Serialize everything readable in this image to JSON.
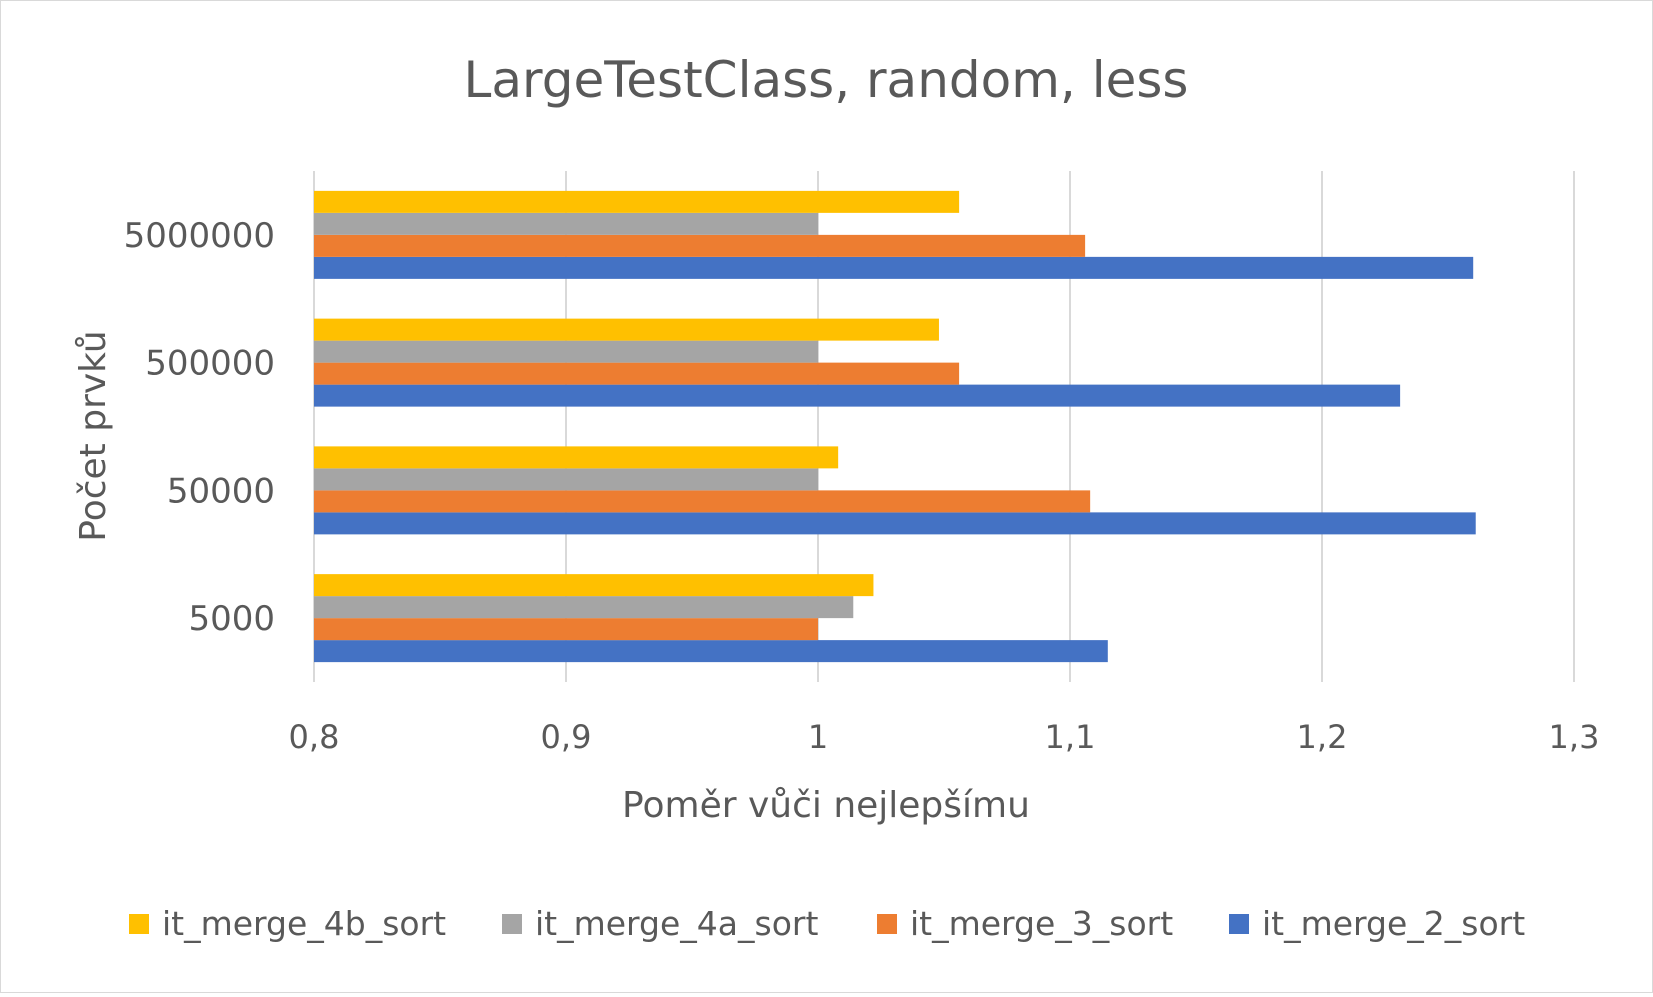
{
  "chart_data": {
    "type": "bar",
    "orientation": "horizontal",
    "title": "LargeTestClass, random, less",
    "xlabel": "Poměr vůči nejlepšímu",
    "ylabel": "Počet prvků",
    "xlim": [
      0.8,
      1.3
    ],
    "xticks": [
      0.8,
      0.9,
      1.0,
      1.1,
      1.2,
      1.3
    ],
    "xtick_labels": [
      "0,8",
      "0,9",
      "1",
      "1,1",
      "1,2",
      "1,3"
    ],
    "categories": [
      "5000",
      "50000",
      "500000",
      "5000000"
    ],
    "grid": "vertical",
    "legend_position": "bottom",
    "series": [
      {
        "name": "it_merge_2_sort",
        "color": "#4472C4",
        "values": [
          1.115,
          1.261,
          1.231,
          1.26
        ]
      },
      {
        "name": "it_merge_3_sort",
        "color": "#ED7D31",
        "values": [
          1.0,
          1.108,
          1.056,
          1.106
        ]
      },
      {
        "name": "it_merge_4a_sort",
        "color": "#A5A5A5",
        "values": [
          1.014,
          1.0,
          1.0,
          1.0
        ]
      },
      {
        "name": "it_merge_4b_sort",
        "color": "#FFC000",
        "values": [
          1.022,
          1.008,
          1.048,
          1.056
        ]
      }
    ]
  }
}
